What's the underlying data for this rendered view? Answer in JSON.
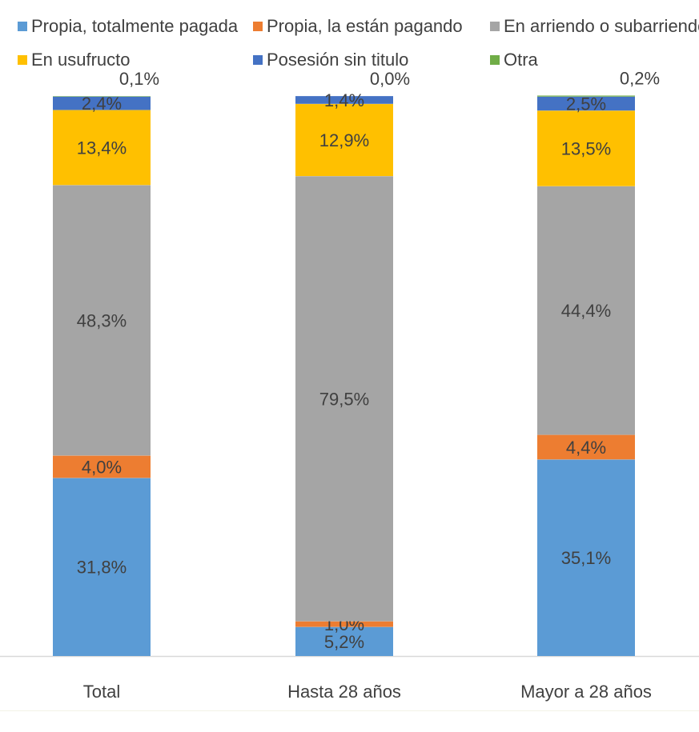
{
  "chart_data": {
    "type": "stacked-bar",
    "categories": [
      "Total",
      "Hasta 28 años",
      "Mayor a 28 años"
    ],
    "series": [
      {
        "name": "Propia, totalmente pagada",
        "color": "#5B9BD5",
        "values": [
          31.8,
          5.2,
          35.1
        ],
        "labels": [
          "31,8%",
          "5,2%",
          "35,1%"
        ]
      },
      {
        "name": "Propia, la están pagando",
        "color": "#ED7D31",
        "values": [
          4.0,
          1.0,
          4.4
        ],
        "labels": [
          "4,0%",
          "1,0%",
          "4,4%"
        ]
      },
      {
        "name": "En arriendo o subarriendo",
        "color": "#A5A5A5",
        "values": [
          48.3,
          79.5,
          44.4
        ],
        "labels": [
          "48,3%",
          "79,5%",
          "44,4%"
        ]
      },
      {
        "name": "En usufructo",
        "color": "#FFC000",
        "values": [
          13.4,
          12.9,
          13.5
        ],
        "labels": [
          "13,4%",
          "12,9%",
          "13,5%"
        ]
      },
      {
        "name": "Posesión sin titulo",
        "color": "#4472C4",
        "values": [
          2.4,
          1.4,
          2.5
        ],
        "labels": [
          "2,4%",
          "1,4%",
          "2,5%"
        ]
      },
      {
        "name": "Otra",
        "color": "#70AD47",
        "values": [
          0.1,
          0.0,
          0.2
        ],
        "labels": [
          "0,1%",
          "0,0%",
          "0,2%"
        ]
      }
    ],
    "ylim": [
      0,
      100
    ],
    "legend": "top",
    "grid": false
  }
}
